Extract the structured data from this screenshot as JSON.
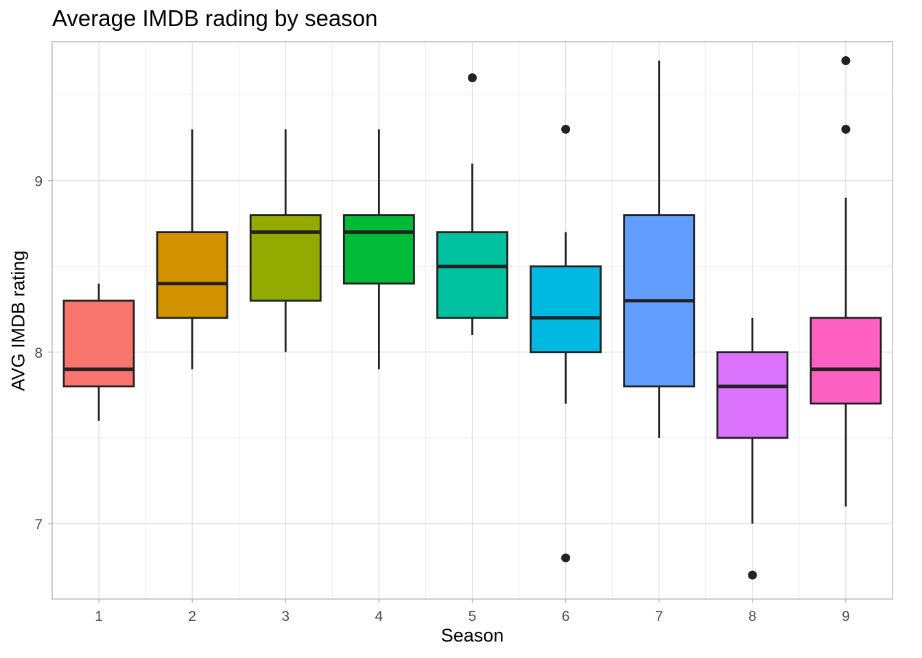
{
  "chart_data": {
    "type": "boxplot",
    "title": "Average IMDB rading by season",
    "xlabel": "Season",
    "ylabel": "AVG IMDB rating",
    "categories": [
      "1",
      "2",
      "3",
      "4",
      "5",
      "6",
      "7",
      "8",
      "9"
    ],
    "ylim": [
      6.56,
      9.81
    ],
    "yticks": [
      7,
      8,
      9
    ],
    "ytick_labels": [
      "7",
      "8",
      "9"
    ],
    "grid": true,
    "legend": "none",
    "boxes": [
      {
        "season": "1",
        "whisker_low": 7.6,
        "q1": 7.8,
        "median": 7.9,
        "q3": 8.3,
        "whisker_high": 8.4,
        "outliers": [],
        "color": "#F8766D"
      },
      {
        "season": "2",
        "whisker_low": 7.9,
        "q1": 8.2,
        "median": 8.4,
        "q3": 8.7,
        "whisker_high": 9.3,
        "outliers": [],
        "color": "#D39200"
      },
      {
        "season": "3",
        "whisker_low": 8.0,
        "q1": 8.3,
        "median": 8.7,
        "q3": 8.8,
        "whisker_high": 9.3,
        "outliers": [],
        "color": "#93AA00"
      },
      {
        "season": "4",
        "whisker_low": 7.9,
        "q1": 8.4,
        "median": 8.7,
        "q3": 8.8,
        "whisker_high": 9.3,
        "outliers": [],
        "color": "#00BA38"
      },
      {
        "season": "5",
        "whisker_low": 8.1,
        "q1": 8.2,
        "median": 8.5,
        "q3": 8.7,
        "whisker_high": 9.1,
        "outliers": [
          9.6
        ],
        "color": "#00C19F"
      },
      {
        "season": "6",
        "whisker_low": 7.7,
        "q1": 8.0,
        "median": 8.2,
        "q3": 8.5,
        "whisker_high": 8.7,
        "outliers": [
          9.3,
          6.8
        ],
        "color": "#00B9E3"
      },
      {
        "season": "7",
        "whisker_low": 7.5,
        "q1": 7.8,
        "median": 8.3,
        "q3": 8.8,
        "whisker_high": 9.7,
        "outliers": [],
        "color": "#619CFF"
      },
      {
        "season": "8",
        "whisker_low": 7.0,
        "q1": 7.5,
        "median": 7.8,
        "q3": 8.0,
        "whisker_high": 8.2,
        "outliers": [
          6.7
        ],
        "color": "#DB72FB"
      },
      {
        "season": "9",
        "whisker_low": 7.1,
        "q1": 7.7,
        "median": 7.9,
        "q3": 8.2,
        "whisker_high": 8.9,
        "outliers": [
          9.7,
          9.3
        ],
        "color": "#FF61C3"
      }
    ]
  }
}
